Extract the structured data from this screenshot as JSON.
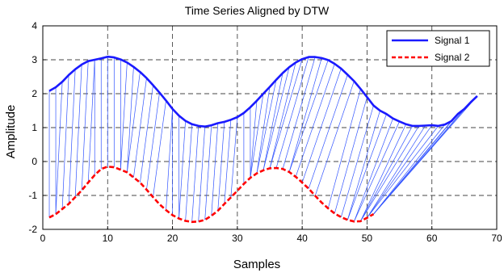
{
  "chart_data": {
    "type": "line",
    "title": "Time Series Aligned by DTW",
    "xlabel": "Samples",
    "ylabel": "Amplitude",
    "xlim": [
      0,
      70
    ],
    "ylim": [
      -2,
      4
    ],
    "xticks": [
      0,
      10,
      20,
      30,
      40,
      50,
      60,
      70
    ],
    "yticks": [
      -2,
      -1,
      0,
      1,
      2,
      3,
      4
    ],
    "grid": true,
    "grid_style": "dashed",
    "legend_position": "top-right",
    "series": [
      {
        "name": "Signal 1",
        "color": "#1a1aff",
        "style": "solid",
        "x": [
          1,
          2,
          3,
          4,
          5,
          6,
          7,
          8,
          9,
          10,
          11,
          12,
          13,
          14,
          15,
          16,
          17,
          18,
          19,
          20,
          21,
          22,
          23,
          24,
          25,
          26,
          27,
          28,
          29,
          30,
          31,
          32,
          33,
          34,
          35,
          36,
          37,
          38,
          39,
          40,
          41,
          42,
          43,
          44,
          45,
          46,
          47,
          48,
          49,
          50,
          51,
          52,
          53,
          54,
          55,
          56,
          57,
          58,
          59,
          60,
          61,
          62,
          63,
          64,
          65,
          66,
          67
        ],
        "values": [
          2.08,
          2.19,
          2.35,
          2.55,
          2.72,
          2.86,
          2.96,
          3.0,
          3.04,
          3.09,
          3.07,
          3.01,
          2.92,
          2.79,
          2.64,
          2.46,
          2.25,
          2.03,
          1.8,
          1.55,
          1.35,
          1.2,
          1.1,
          1.05,
          1.03,
          1.07,
          1.13,
          1.17,
          1.23,
          1.31,
          1.43,
          1.6,
          1.79,
          2.0,
          2.2,
          2.41,
          2.61,
          2.78,
          2.92,
          3.02,
          3.08,
          3.08,
          3.05,
          2.99,
          2.88,
          2.74,
          2.56,
          2.37,
          2.14,
          1.9,
          1.65,
          1.5,
          1.4,
          1.27,
          1.18,
          1.1,
          1.05,
          1.05,
          1.06,
          1.07,
          1.05,
          1.09,
          1.19,
          1.4,
          1.55,
          1.75,
          1.93
        ]
      },
      {
        "name": "Signal 2",
        "color": "#ff0000",
        "style": "dashed",
        "x": [
          1,
          2,
          3,
          4,
          5,
          6,
          7,
          8,
          9,
          10,
          11,
          12,
          13,
          14,
          15,
          16,
          17,
          18,
          19,
          20,
          21,
          22,
          23,
          24,
          25,
          26,
          27,
          28,
          29,
          30,
          31,
          32,
          33,
          34,
          35,
          36,
          37,
          38,
          39,
          40,
          41,
          42,
          43,
          44,
          45,
          46,
          47,
          48,
          49,
          50,
          51
        ],
        "values": [
          -1.65,
          -1.55,
          -1.4,
          -1.25,
          -1.05,
          -0.85,
          -0.62,
          -0.4,
          -0.22,
          -0.15,
          -0.17,
          -0.24,
          -0.32,
          -0.47,
          -0.62,
          -0.83,
          -1.05,
          -1.26,
          -1.43,
          -1.58,
          -1.68,
          -1.75,
          -1.78,
          -1.77,
          -1.72,
          -1.6,
          -1.45,
          -1.25,
          -1.06,
          -0.86,
          -0.66,
          -0.48,
          -0.35,
          -0.26,
          -0.2,
          -0.19,
          -0.22,
          -0.31,
          -0.45,
          -0.62,
          -0.8,
          -1.01,
          -1.21,
          -1.38,
          -1.53,
          -1.64,
          -1.72,
          -1.77,
          -1.76,
          -1.66,
          -1.55
        ]
      }
    ],
    "alignment_color": "#3355ff",
    "alignment_pairs": [
      [
        0,
        0
      ],
      [
        1,
        1
      ],
      [
        2,
        1
      ],
      [
        3,
        2
      ],
      [
        4,
        3
      ],
      [
        5,
        4
      ],
      [
        6,
        5
      ],
      [
        7,
        6
      ],
      [
        7,
        7
      ],
      [
        8,
        8
      ],
      [
        9,
        9
      ],
      [
        10,
        10
      ],
      [
        11,
        11
      ],
      [
        12,
        11
      ],
      [
        13,
        12
      ],
      [
        14,
        12
      ],
      [
        15,
        13
      ],
      [
        16,
        14
      ],
      [
        17,
        15
      ],
      [
        18,
        16
      ],
      [
        19,
        18
      ],
      [
        19,
        19
      ],
      [
        20,
        20
      ],
      [
        21,
        20
      ],
      [
        22,
        21
      ],
      [
        23,
        22
      ],
      [
        24,
        23
      ],
      [
        25,
        24
      ],
      [
        26,
        25
      ],
      [
        27,
        26
      ],
      [
        28,
        27
      ],
      [
        29,
        28
      ],
      [
        30,
        30
      ],
      [
        31,
        31
      ],
      [
        32,
        31
      ],
      [
        33,
        31
      ],
      [
        34,
        32
      ],
      [
        35,
        32
      ],
      [
        36,
        33
      ],
      [
        37,
        33
      ],
      [
        38,
        34
      ],
      [
        39,
        34
      ],
      [
        40,
        35
      ],
      [
        41,
        36
      ],
      [
        42,
        37
      ],
      [
        43,
        37
      ],
      [
        44,
        38
      ],
      [
        45,
        39
      ],
      [
        46,
        40
      ],
      [
        47,
        41
      ],
      [
        48,
        43
      ],
      [
        49,
        44
      ],
      [
        50,
        45
      ],
      [
        51,
        46
      ],
      [
        52,
        46
      ],
      [
        53,
        47
      ],
      [
        54,
        47
      ],
      [
        55,
        48
      ],
      [
        56,
        48
      ],
      [
        57,
        48
      ],
      [
        58,
        49
      ],
      [
        59,
        49
      ],
      [
        60,
        49
      ],
      [
        61,
        50
      ],
      [
        62,
        50
      ],
      [
        63,
        50
      ],
      [
        64,
        50
      ],
      [
        65,
        50
      ],
      [
        66,
        50
      ]
    ]
  }
}
